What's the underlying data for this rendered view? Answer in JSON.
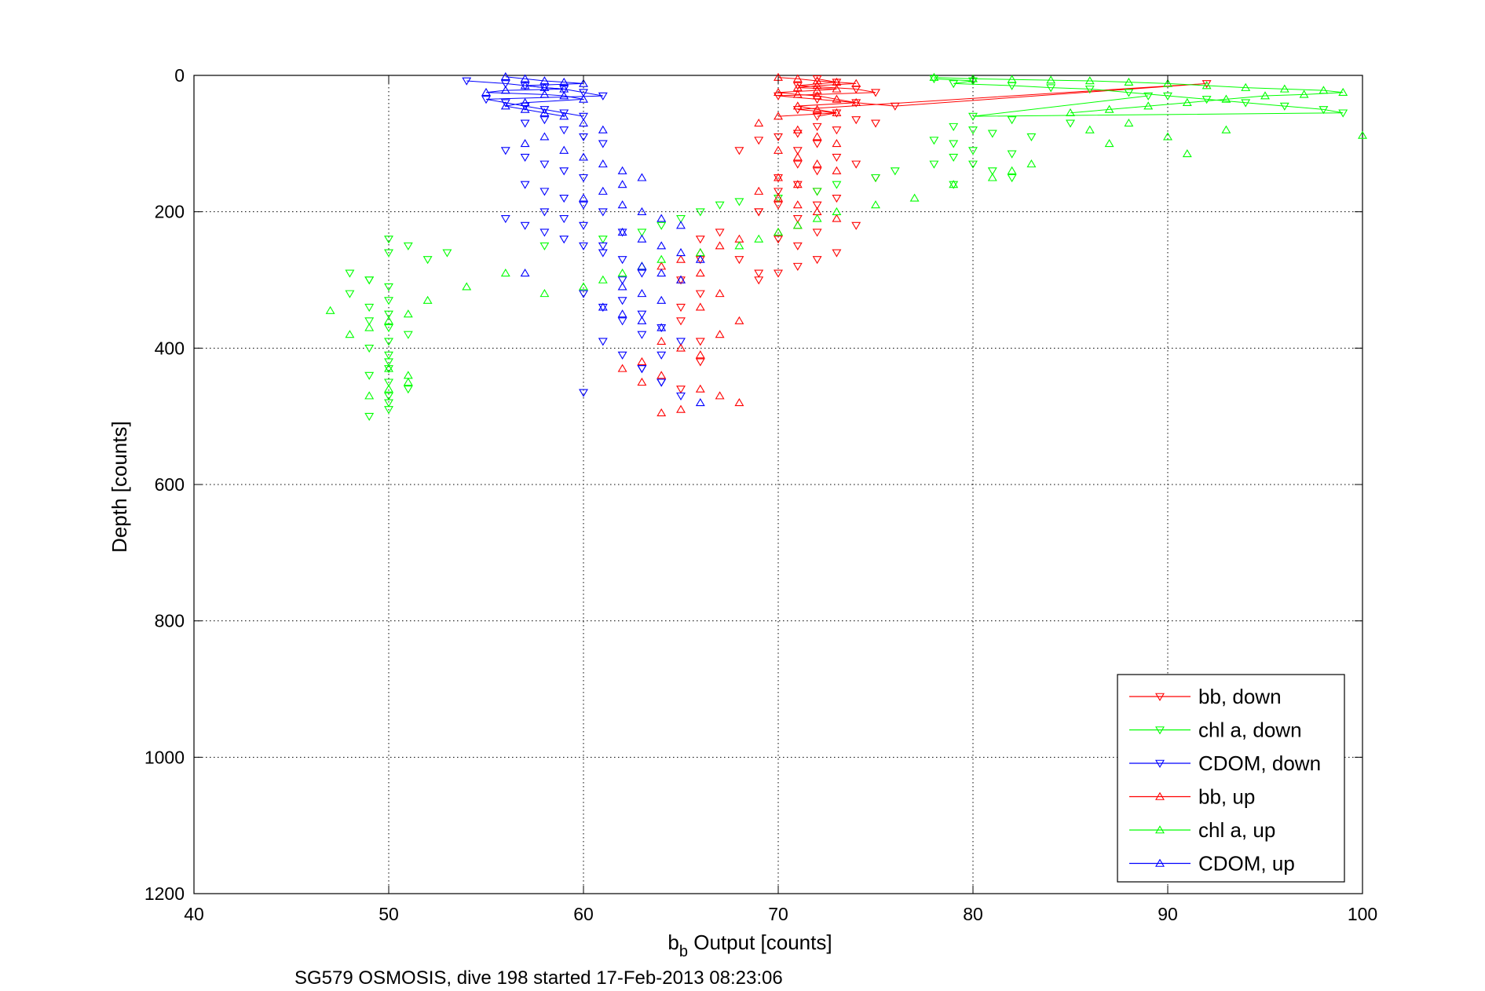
{
  "chart_data": {
    "type": "scatter",
    "title": "",
    "xlabel_main": "b",
    "xlabel_sub": "b",
    "xlabel_rest": " Output [counts]",
    "ylabel": "Depth [counts]",
    "caption": "SG579 OSMOSIS, dive 198 started 17-Feb-2013 08:23:06",
    "xlim": [
      40,
      100
    ],
    "ylim": [
      0,
      1200
    ],
    "y_reversed": true,
    "grid": true,
    "legend_position": "bottom-right",
    "x_ticks": [
      "40",
      "50",
      "60",
      "70",
      "80",
      "90",
      "100"
    ],
    "y_ticks": [
      "0",
      "200",
      "400",
      "600",
      "800",
      "1000",
      "1200"
    ],
    "series": [
      {
        "name": "bb, down",
        "color": "#ff0000",
        "marker": "triangle-down",
        "x": [
          72,
          73,
          71,
          74,
          75,
          70,
          72,
          74,
          76,
          92,
          71,
          73,
          72,
          74,
          75,
          72,
          73,
          71,
          70,
          69,
          72,
          71,
          73,
          74,
          72,
          75,
          71,
          70,
          73,
          72,
          69,
          71,
          74,
          72,
          70,
          71,
          73,
          72,
          71,
          70,
          69,
          68,
          71,
          70,
          72,
          70,
          69,
          68,
          69,
          67,
          66,
          66,
          65,
          66,
          65,
          65,
          66,
          66,
          65
        ],
        "y": [
          5,
          10,
          15,
          20,
          25,
          30,
          35,
          40,
          45,
          12,
          50,
          55,
          60,
          65,
          70,
          75,
          80,
          85,
          90,
          95,
          100,
          110,
          120,
          130,
          140,
          150,
          160,
          170,
          180,
          190,
          200,
          210,
          220,
          230,
          240,
          250,
          260,
          270,
          280,
          290,
          300,
          110,
          130,
          150,
          170,
          190,
          200,
          270,
          290,
          230,
          240,
          270,
          300,
          320,
          340,
          360,
          390,
          420,
          460
        ]
      },
      {
        "name": "chl a, down",
        "color": "#00ff00",
        "marker": "triangle-down",
        "x": [
          78,
          80,
          79,
          82,
          84,
          86,
          88,
          90,
          92,
          94,
          96,
          98,
          99,
          80,
          82,
          85,
          89,
          79,
          80,
          81,
          83,
          78,
          79,
          80,
          82,
          79,
          80,
          81,
          82,
          79,
          78,
          76,
          75,
          73,
          72,
          70,
          68,
          67,
          66,
          65,
          64,
          63,
          61,
          58,
          53,
          52,
          50,
          51,
          50,
          49,
          48,
          49,
          48,
          49,
          50,
          49,
          50,
          51,
          50,
          49,
          50,
          50,
          50,
          49,
          50,
          51,
          50,
          50,
          50,
          49,
          50,
          50
        ],
        "y": [
          5,
          8,
          12,
          15,
          18,
          20,
          25,
          30,
          35,
          40,
          45,
          50,
          55,
          60,
          65,
          70,
          30,
          75,
          80,
          85,
          90,
          95,
          100,
          110,
          115,
          120,
          130,
          140,
          150,
          160,
          130,
          140,
          150,
          160,
          170,
          180,
          185,
          190,
          200,
          210,
          220,
          230,
          240,
          250,
          260,
          270,
          240,
          250,
          260,
          300,
          290,
          300,
          320,
          340,
          350,
          360,
          370,
          380,
          390,
          400,
          410,
          420,
          430,
          440,
          450,
          460,
          470,
          480,
          490,
          500,
          310,
          330
        ]
      },
      {
        "name": "CDOM, down",
        "color": "#0000ff",
        "marker": "triangle-down",
        "x": [
          54,
          56,
          57,
          58,
          59,
          60,
          61,
          55,
          56,
          57,
          58,
          59,
          60,
          58,
          57,
          59,
          60,
          61,
          56,
          57,
          58,
          59,
          60,
          57,
          58,
          59,
          60,
          61,
          56,
          57,
          58,
          59,
          60,
          61,
          58,
          59,
          60,
          62,
          61,
          62,
          63,
          62,
          60,
          61,
          62,
          63,
          61,
          62,
          63,
          64,
          62,
          63,
          64,
          65,
          64,
          63,
          64,
          65,
          60
        ],
        "y": [
          8,
          12,
          15,
          18,
          20,
          25,
          30,
          35,
          40,
          45,
          50,
          55,
          60,
          65,
          70,
          80,
          90,
          100,
          110,
          120,
          130,
          140,
          150,
          160,
          170,
          180,
          190,
          200,
          210,
          220,
          230,
          240,
          250,
          260,
          200,
          210,
          220,
          230,
          250,
          270,
          290,
          300,
          320,
          340,
          360,
          380,
          390,
          410,
          430,
          450,
          330,
          350,
          370,
          390,
          410,
          430,
          450,
          470,
          465
        ]
      },
      {
        "name": "bb, up",
        "color": "#ff0000",
        "marker": "triangle-up",
        "x": [
          70,
          71,
          72,
          73,
          74,
          72,
          71,
          73,
          72,
          70,
          71,
          72,
          73,
          74,
          71,
          72,
          73,
          70,
          69,
          71,
          72,
          73,
          70,
          71,
          72,
          73,
          70,
          71,
          69,
          70,
          71,
          72,
          73,
          71,
          70,
          68,
          67,
          66,
          65,
          64,
          66,
          65,
          67,
          66,
          68,
          67,
          64,
          65,
          66,
          63,
          62,
          64,
          63,
          66,
          67,
          68,
          65,
          64
        ],
        "y": [
          3,
          5,
          8,
          10,
          12,
          15,
          18,
          20,
          22,
          25,
          28,
          30,
          35,
          40,
          45,
          50,
          55,
          60,
          70,
          80,
          90,
          100,
          110,
          120,
          130,
          140,
          150,
          160,
          170,
          180,
          190,
          200,
          210,
          220,
          230,
          240,
          250,
          260,
          270,
          280,
          290,
          300,
          320,
          340,
          360,
          380,
          390,
          400,
          410,
          420,
          430,
          440,
          450,
          460,
          470,
          480,
          490,
          495
        ]
      },
      {
        "name": "chl a, up",
        "color": "#00ff00",
        "marker": "triangle-up",
        "x": [
          78,
          80,
          82,
          84,
          86,
          88,
          90,
          92,
          94,
          96,
          98,
          99,
          97,
          95,
          93,
          91,
          89,
          87,
          85,
          100,
          93,
          91,
          90,
          88,
          87,
          86,
          83,
          82,
          81,
          79,
          77,
          75,
          73,
          72,
          71,
          70,
          69,
          68,
          66,
          64,
          63,
          62,
          61,
          60,
          58,
          56,
          54,
          52,
          51,
          50,
          49,
          48,
          47,
          51,
          50,
          49,
          51,
          50
        ],
        "y": [
          3,
          5,
          6,
          7,
          8,
          10,
          12,
          15,
          18,
          20,
          22,
          25,
          28,
          30,
          35,
          40,
          45,
          50,
          55,
          88,
          80,
          115,
          90,
          70,
          100,
          80,
          130,
          140,
          150,
          160,
          180,
          190,
          200,
          210,
          220,
          230,
          240,
          250,
          260,
          270,
          280,
          290,
          300,
          310,
          320,
          290,
          310,
          330,
          350,
          360,
          370,
          380,
          345,
          450,
          460,
          470,
          440,
          430
        ]
      },
      {
        "name": "CDOM, up",
        "color": "#0000ff",
        "marker": "triangle-up",
        "x": [
          56,
          57,
          58,
          59,
          60,
          57,
          58,
          59,
          56,
          55,
          58,
          59,
          60,
          57,
          56,
          57,
          58,
          59,
          60,
          61,
          58,
          57,
          59,
          60,
          61,
          62,
          63,
          62,
          61,
          60,
          62,
          63,
          64,
          65,
          62,
          63,
          64,
          65,
          66,
          63,
          64,
          65,
          62,
          63,
          64,
          61,
          62,
          63,
          64,
          57,
          66
        ],
        "y": [
          2,
          5,
          8,
          10,
          12,
          15,
          18,
          20,
          22,
          25,
          28,
          30,
          35,
          40,
          45,
          50,
          55,
          60,
          70,
          80,
          90,
          100,
          110,
          120,
          130,
          140,
          150,
          160,
          170,
          180,
          190,
          200,
          210,
          220,
          230,
          240,
          250,
          260,
          270,
          280,
          290,
          300,
          310,
          320,
          330,
          340,
          350,
          360,
          370,
          290,
          480
        ]
      }
    ]
  }
}
